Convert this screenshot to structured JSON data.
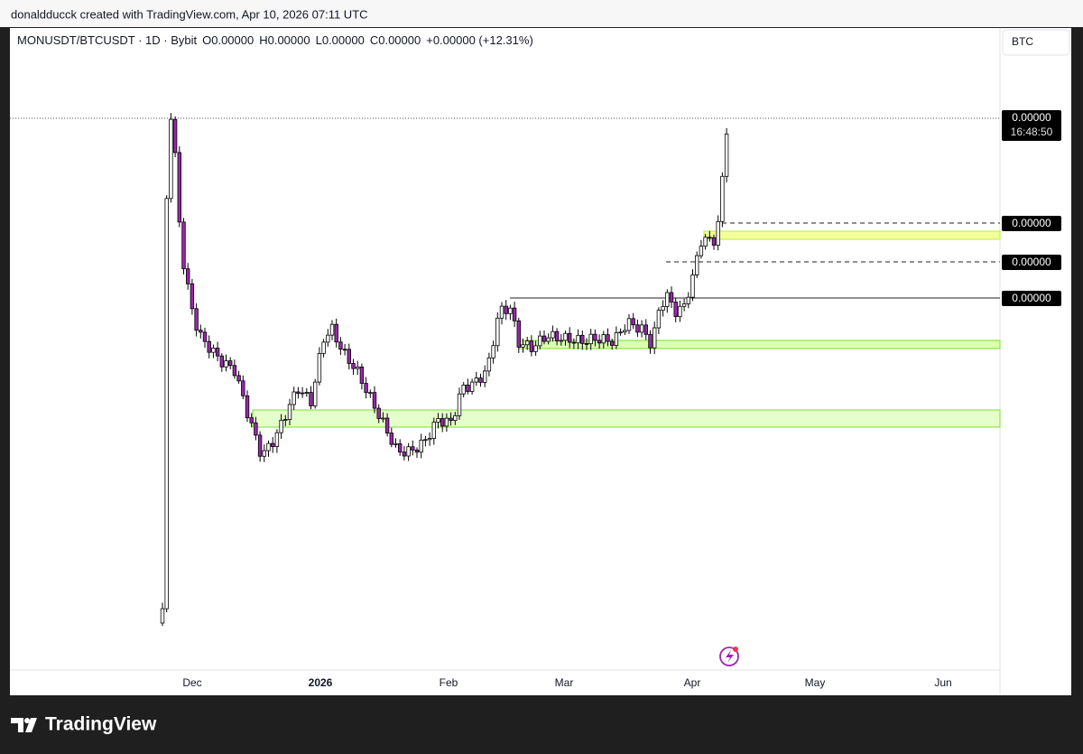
{
  "header": {
    "caption": "donaldducck created with TradingView.com, Apr 10, 2026 07:11 UTC"
  },
  "legend": {
    "symbol": "MONUSDT/BTCUSDT · 1D · Bybit",
    "open": "O0.00000",
    "high": "H0.00000",
    "low": "L0.00000",
    "close": "C0.00000",
    "change": "+0.00000 (+12.31%)"
  },
  "price_axis": {
    "currency": "BTC",
    "labels": [
      "0.00000",
      "0.00000",
      "0.00000",
      "0.00000"
    ],
    "countdown": "16:48:50"
  },
  "time_axis": {
    "labels": [
      "Dec",
      "2026",
      "Feb",
      "Mar",
      "Apr",
      "May",
      "Jun"
    ]
  },
  "footer": {
    "brand": "TradingView"
  }
}
